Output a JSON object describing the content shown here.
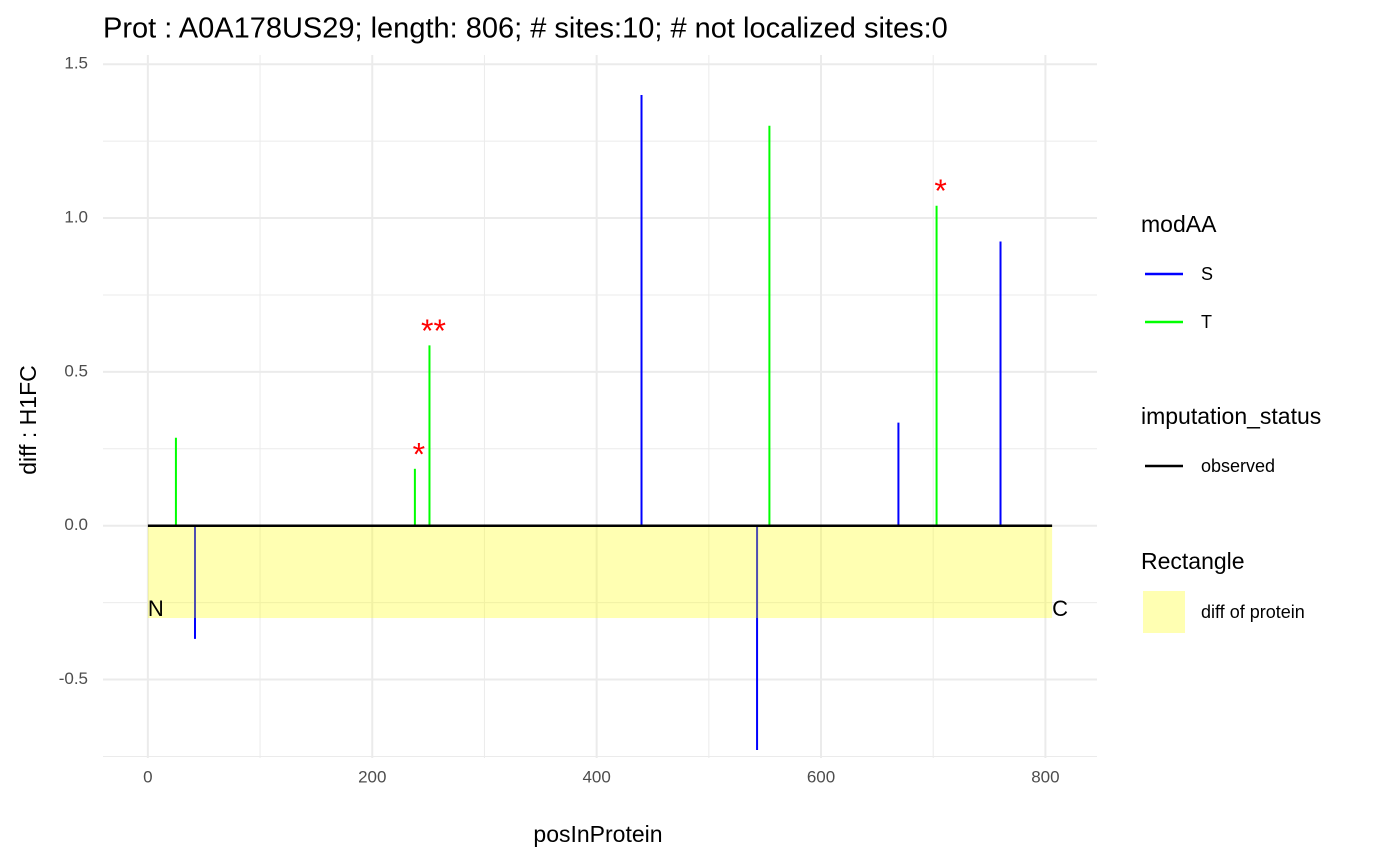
{
  "chart_data": {
    "type": "lollipop",
    "title": "Prot : A0A178US29; length: 806; # sites:10; # not localized sites:0",
    "x_label": "posInProtein",
    "y_label": "diff : H1FC",
    "xlim": [
      -40,
      846
    ],
    "ylim": [
      -0.755,
      1.53
    ],
    "xticks": [
      0,
      200,
      400,
      600,
      800
    ],
    "xminor": [
      100,
      300,
      500,
      700
    ],
    "yticks": [
      -0.5,
      {
        "value": 0,
        "label": "0.0"
      },
      0.5,
      {
        "value": 1,
        "label": "1.0"
      },
      1.5
    ],
    "yminor": [
      -0.75,
      -0.25,
      0.25,
      0.75,
      1.25
    ],
    "grid": true,
    "series": [
      {
        "name": "S",
        "color": "#0000ff",
        "x": [
          42,
          440,
          543,
          669,
          760
        ],
        "values": [
          -0.368,
          1.4,
          -0.729,
          0.335,
          0.924
        ],
        "labels": [
          null,
          null,
          null,
          null,
          null
        ]
      },
      {
        "name": "T",
        "color": "#00ff00",
        "x": [
          25,
          238,
          251,
          554,
          703
        ],
        "values": [
          0.286,
          0.185,
          0.586,
          1.3,
          1.04
        ],
        "labels": [
          null,
          "*",
          "**",
          null,
          "*"
        ]
      }
    ],
    "label_color": "#ff0000",
    "protein": {
      "start": 0,
      "length": 806,
      "diff": -0.3,
      "n_label": "N",
      "c_label": "C",
      "fill": "#ffff00",
      "opacity": 0.3,
      "line_color": "#000000"
    },
    "legend": {
      "color_title": "modAA",
      "imputation_title": "imputation_status",
      "imputation_entries": [
        "observed"
      ],
      "rect_title": "Rectangle",
      "rect_entries": [
        "diff of protein"
      ]
    }
  }
}
